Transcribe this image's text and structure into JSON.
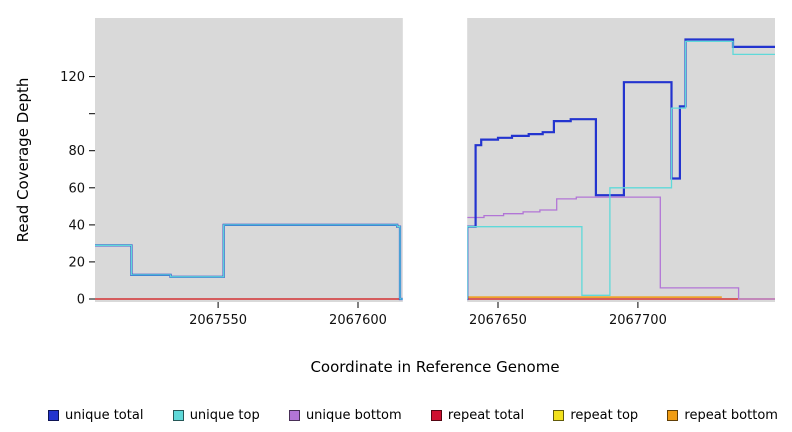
{
  "chart_data": {
    "type": "line",
    "subtype": "step",
    "title": "",
    "xlabel": "Coordinate in Reference Genome",
    "ylabel": "Read Coverage Depth",
    "x_range": [
      2067506,
      2067749
    ],
    "ylim": [
      0,
      150
    ],
    "grid": false,
    "plot_bg": "#d9d9d9",
    "gap_region": {
      "start": 2067616,
      "end": 2067639,
      "color": "#ffffff"
    },
    "x_ticks": [
      "2067550",
      "2067600",
      "2067650",
      "2067700"
    ],
    "x_tick_values": [
      2067550,
      2067600,
      2067650,
      2067700
    ],
    "y_ticks": [
      {
        "value": 0,
        "label": "0"
      },
      {
        "value": 20,
        "label": "20"
      },
      {
        "value": 40,
        "label": "40"
      },
      {
        "value": 60,
        "label": "60"
      },
      {
        "value": 80,
        "label": "80"
      },
      {
        "value": 100,
        "label": ""
      },
      {
        "value": 120,
        "label": "120"
      }
    ],
    "legend_position": "bottom",
    "series": [
      {
        "name": "unique total",
        "color": "#2334cf",
        "width": 2.2,
        "z": 5,
        "points": [
          [
            2067506,
            29
          ],
          [
            2067519,
            13
          ],
          [
            2067533,
            12
          ],
          [
            2067552,
            40
          ],
          [
            2067614,
            39
          ],
          [
            2067615,
            0
          ],
          [
            2067639,
            39
          ],
          [
            2067642,
            83
          ],
          [
            2067644,
            86
          ],
          [
            2067650,
            87
          ],
          [
            2067655,
            88
          ],
          [
            2067661,
            89
          ],
          [
            2067666,
            90
          ],
          [
            2067670,
            96
          ],
          [
            2067676,
            97
          ],
          [
            2067685,
            56
          ],
          [
            2067695,
            117
          ],
          [
            2067712,
            65
          ],
          [
            2067715,
            104
          ],
          [
            2067717,
            140
          ],
          [
            2067734,
            136
          ],
          [
            2067749,
            136
          ]
        ]
      },
      {
        "name": "unique top",
        "color": "#5fd9d9",
        "width": 1.3,
        "z": 6,
        "points": [
          [
            2067506,
            29
          ],
          [
            2067519,
            13
          ],
          [
            2067533,
            12
          ],
          [
            2067552,
            40
          ],
          [
            2067614,
            39
          ],
          [
            2067615,
            0
          ],
          [
            2067639,
            39
          ],
          [
            2067680,
            2
          ],
          [
            2067690,
            60
          ],
          [
            2067712,
            103
          ],
          [
            2067717,
            139
          ],
          [
            2067734,
            132
          ],
          [
            2067749,
            132
          ]
        ]
      },
      {
        "name": "unique bottom",
        "color": "#b275d6",
        "width": 1.3,
        "z": 4,
        "points": [
          [
            2067639,
            44
          ],
          [
            2067645,
            45
          ],
          [
            2067652,
            46
          ],
          [
            2067659,
            47
          ],
          [
            2067665,
            48
          ],
          [
            2067671,
            54
          ],
          [
            2067678,
            55
          ],
          [
            2067708,
            6
          ],
          [
            2067736,
            0
          ],
          [
            2067749,
            0
          ]
        ]
      },
      {
        "name": "repeat total",
        "color": "#cf1030",
        "width": 1.3,
        "z": 2,
        "points": [
          [
            2067506,
            0
          ],
          [
            2067749,
            0
          ]
        ]
      },
      {
        "name": "repeat top",
        "color": "#f2e11c",
        "width": 1.2,
        "z": 1,
        "points": [
          [
            2067506,
            0
          ],
          [
            2067749,
            0
          ]
        ]
      },
      {
        "name": "repeat bottom",
        "color": "#f09c12",
        "width": 1.5,
        "z": 3,
        "points": [
          [
            2067639,
            1
          ],
          [
            2067730,
            1
          ]
        ]
      }
    ]
  }
}
